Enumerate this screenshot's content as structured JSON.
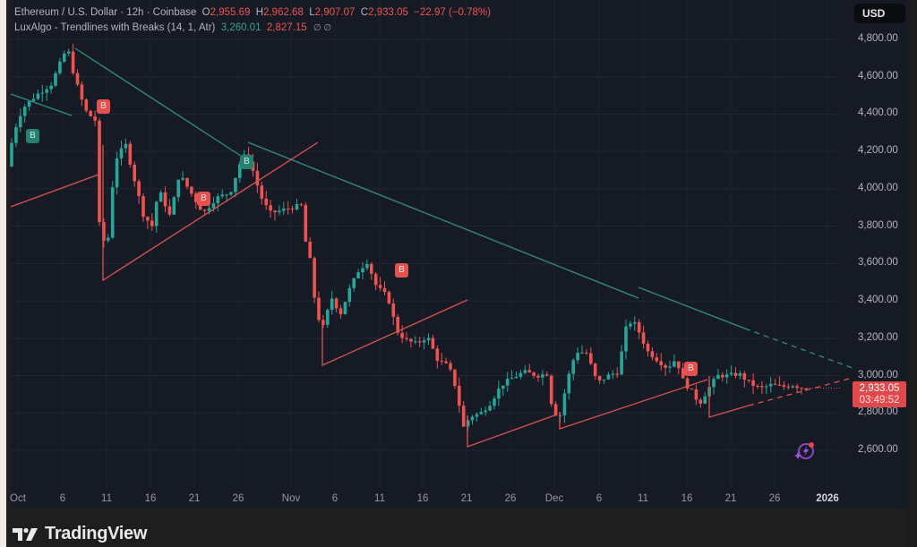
{
  "header": {
    "symbol": "Ethereum / U.S. Dollar · 12h · Coinbase",
    "open_label": "O",
    "open": "2,955.69",
    "high_label": "H",
    "high": "2,962.68",
    "low_label": "L",
    "low": "2,907.07",
    "close_label": "C",
    "close": "2,933.05",
    "change": "−22.97 (−0.78%)",
    "indicator": "LuxAlgo - Trendlines with Breaks (14, 1, Atr)",
    "indicator_upper": "3,260.01",
    "indicator_lower": "2,827.15",
    "indicator_symbols": "∅ ∅"
  },
  "currency_button": "USD",
  "last_price": {
    "value": "2,933.05",
    "countdown": "03:49:52"
  },
  "price_ticks": [
    "4,800.00",
    "4,600.00",
    "4,400.00",
    "4,200.00",
    "4,000.00",
    "3,800.00",
    "3,600.00",
    "3,400.00",
    "3,200.00",
    "3,000.00",
    "2,800.00",
    "2,600.00"
  ],
  "time_ticks": [
    "Oct",
    "6",
    "11",
    "16",
    "21",
    "26",
    "Nov",
    "6",
    "11",
    "16",
    "21",
    "26",
    "Dec",
    "6",
    "11",
    "16",
    "21",
    "26",
    "2026"
  ],
  "brand": "TradingView",
  "signals": [
    {
      "label": "B",
      "type": "buy"
    },
    {
      "label": "B",
      "type": "sell"
    },
    {
      "label": "B",
      "type": "sell"
    },
    {
      "label": "B",
      "type": "buy"
    },
    {
      "label": "B",
      "type": "sell"
    },
    {
      "label": "B",
      "type": "sell"
    }
  ],
  "colors": {
    "up": "#26a69a",
    "down": "#ef5350",
    "bg": "#161a25",
    "upper_trend": "#2f8f7f",
    "lower_trend": "#d9534f",
    "last_price_bg": "#e0494b"
  },
  "chart_data": {
    "type": "candlestick",
    "title": "Ethereum / U.S. Dollar · 12h · Coinbase",
    "interval": "12h",
    "ylabel": "USD",
    "ylim": [
      2500,
      4900
    ],
    "y_ticks": [
      2600,
      2800,
      3000,
      3200,
      3400,
      3600,
      3800,
      4000,
      4200,
      4400,
      4600,
      4800
    ],
    "x_ticks": [
      "Oct",
      "6",
      "11",
      "16",
      "21",
      "26",
      "Nov",
      "6",
      "11",
      "16",
      "21",
      "26",
      "Dec",
      "6",
      "11",
      "16",
      "21",
      "26",
      "2026"
    ],
    "grid": true,
    "last": {
      "open": 2955.69,
      "high": 2962.68,
      "low": 2907.07,
      "close": 2933.05,
      "change": -22.97,
      "change_pct": -0.78
    },
    "indicator": {
      "name": "LuxAlgo - Trendlines with Breaks",
      "params": [
        14,
        1,
        "Atr"
      ],
      "upper": 3260.01,
      "lower": 2827.15
    },
    "approx_swing_points": [
      {
        "date": "Oct 1",
        "price": 4150
      },
      {
        "date": "Oct 7",
        "price": 4760
      },
      {
        "date": "Oct 10",
        "price": 3510
      },
      {
        "date": "Oct 13",
        "price": 4280
      },
      {
        "date": "Oct 17",
        "price": 3700
      },
      {
        "date": "Oct 27",
        "price": 4250
      },
      {
        "date": "Nov 4",
        "price": 3060
      },
      {
        "date": "Nov 11",
        "price": 3640
      },
      {
        "date": "Nov 21",
        "price": 2620
      },
      {
        "date": "Dec 1",
        "price": 2720
      },
      {
        "date": "Dec 10",
        "price": 3460
      },
      {
        "date": "Dec 18",
        "price": 2780
      },
      {
        "date": "Dec 29",
        "price": 2933
      }
    ],
    "signals": [
      {
        "date": "Oct 2",
        "type": "buy"
      },
      {
        "date": "Oct 9",
        "type": "sell"
      },
      {
        "date": "Oct 22",
        "type": "sell"
      },
      {
        "date": "Oct 26",
        "type": "buy"
      },
      {
        "date": "Nov 13",
        "type": "sell"
      },
      {
        "date": "Dec 16",
        "type": "sell"
      }
    ]
  }
}
